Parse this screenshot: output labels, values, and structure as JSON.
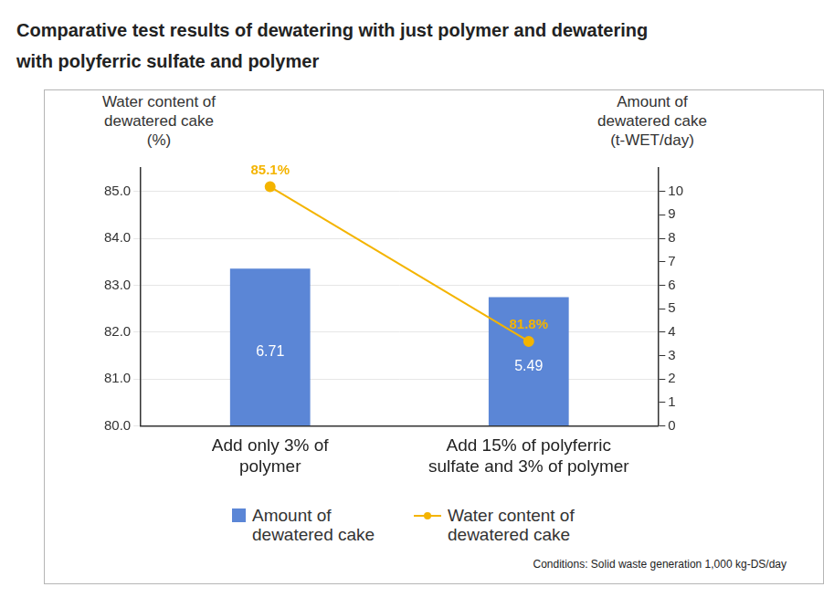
{
  "chart_data": {
    "type": "bar",
    "title": "Comparative test results of dewatering with just polymer and dewatering with polyferric sulfate and polymer",
    "categories": [
      [
        "Add only 3% of",
        "polymer"
      ],
      [
        "Add 15% of polyferric",
        "sulfate and 3% of polymer"
      ]
    ],
    "ylabel": [
      "Water content of",
      "dewatered cake",
      "(%)"
    ],
    "y2label": [
      "Amount of",
      "dewatered cake",
      "(t-WET/day)"
    ],
    "ylim": [
      80,
      85.5
    ],
    "yticks": [
      {
        "value": 80,
        "label": "80.0"
      },
      {
        "value": 81,
        "label": "81.0"
      },
      {
        "value": 82,
        "label": "82.0"
      },
      {
        "value": 83,
        "label": "83.0"
      },
      {
        "value": 84,
        "label": "84.0"
      },
      {
        "value": 85,
        "label": "85.0"
      }
    ],
    "y2lim": [
      0,
      11
    ],
    "y2ticks": [
      0,
      1,
      2,
      3,
      4,
      5,
      6,
      7,
      8,
      9,
      10
    ],
    "grid": true,
    "legend": "bottom",
    "data_labels": true,
    "series": [
      {
        "name": "Amount of dewatered cake",
        "type": "bar",
        "color": "#5b86d6",
        "axis": "y2",
        "values": [
          6.71,
          5.49
        ]
      },
      {
        "name": "Water content of dewatered cake",
        "type": "line",
        "color": "#f4b400",
        "marker": "circle",
        "values": [
          85.1,
          81.8
        ],
        "value_labels": [
          "85.1%",
          "81.8%"
        ]
      }
    ],
    "annotations": [
      "Conditions: Solid waste generation 1,000 kg-DS/day"
    ]
  }
}
